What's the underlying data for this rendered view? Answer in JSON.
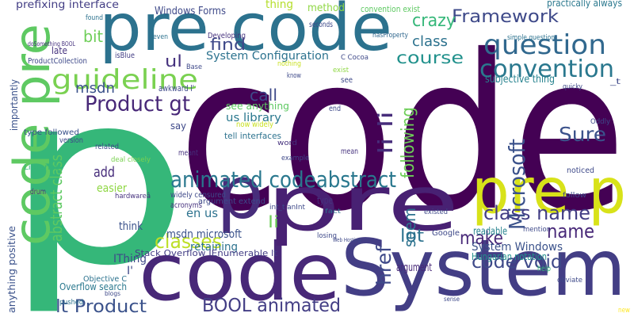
{
  "words": [
    "code",
    "p",
    "pre code",
    "System",
    "code",
    "pre p",
    "pre",
    "p",
    "code pre",
    "guideline",
    "question",
    "convention",
    "Framework",
    "crazy",
    "course",
    "class",
    "Product gt",
    "msdn",
    "bit",
    "find",
    "ul",
    "System Configuration",
    "Windows Forms",
    "prefixing interface",
    "thing",
    "method",
    "convention exist",
    "Microsoft",
    "Sure",
    "subjective thing",
    "following",
    "li li",
    "call",
    "see anything",
    "us library",
    "animated codeabstract",
    "abstract class",
    "add",
    "easier",
    "classes",
    "BOOL animated",
    "lt Product",
    "class name",
    "name",
    "make",
    "lot",
    "seem",
    "href",
    "code void",
    "System Windows",
    "Hungarian notation",
    "readable",
    "argument",
    "li",
    "en us",
    "msdn microsoft",
    "think",
    "IThing",
    "retaining",
    "Stack Overflow IEnumerable lt",
    "Overflow search",
    "Objective C",
    "anything positive",
    "importantly",
    "late",
    "Libraries",
    "type followed",
    "version",
    "drum",
    "tell interfaces",
    "now widely",
    "awkward I'",
    "ProductCollection",
    "doSomething BOOL",
    "isBlue",
    "Base",
    "Developing",
    "even",
    "found",
    "seconds",
    "hasProperty",
    "C Cocoa",
    "simple question",
    "practically always",
    "quicky",
    "see",
    "know",
    "end",
    "say",
    "related",
    "meant",
    "deal closely",
    "hardwareâ",
    "widely censured",
    "acronyms",
    "argument extend",
    "int_t anInt",
    "word",
    "example",
    "mean",
    "type",
    "fact",
    "losing",
    "Google",
    "existed",
    "noticed",
    "follow",
    "mention",
    "help",
    "obviate",
    "sense",
    "Oddly",
    "_t",
    "new",
    "pushed",
    "blogs",
    "I'",
    "nothing",
    "exist",
    "Web Hosting"
  ]
}
